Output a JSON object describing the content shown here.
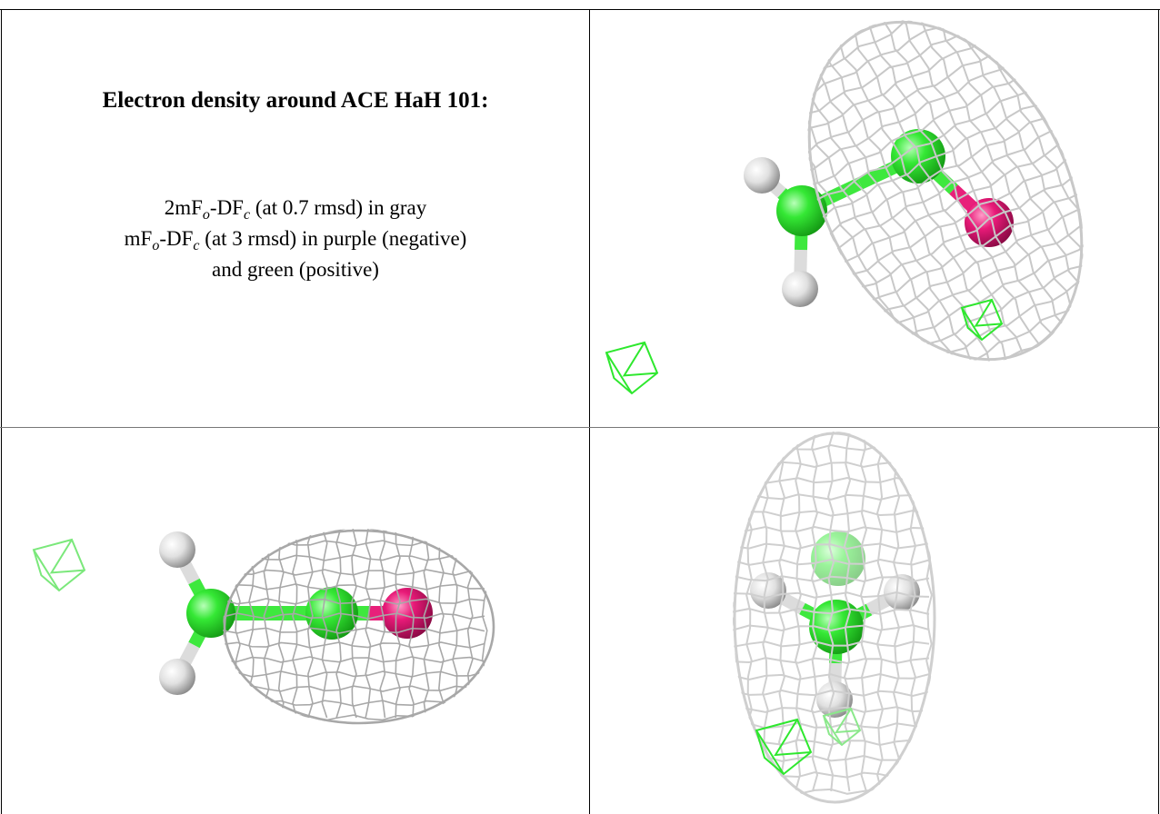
{
  "caption": {
    "title": "Electron density around ACE HaH 101:",
    "lines": [
      [
        "2mF",
        "o",
        "-DF",
        "c",
        " (at 0.7 rmsd) in gray"
      ],
      [
        "mF",
        "o",
        "-DF",
        "c",
        " (at 3 rmsd) in purple (negative)"
      ],
      [
        "and green (positive)"
      ]
    ]
  }
}
